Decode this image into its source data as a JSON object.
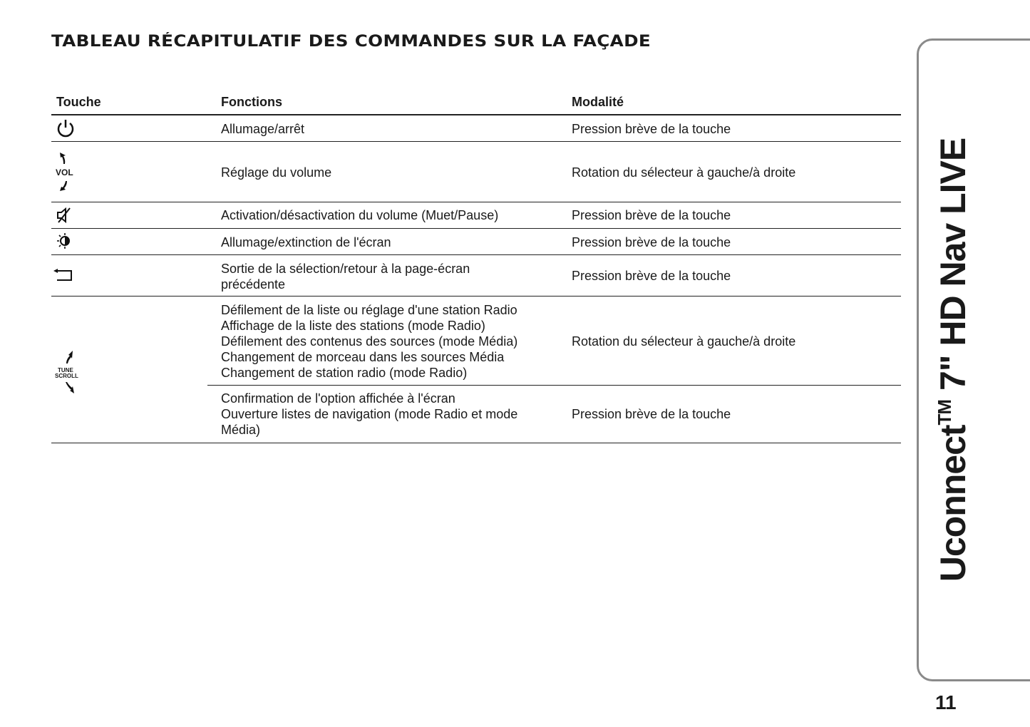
{
  "title": "TABLEAU RÉCAPITULATIF DES COMMANDES SUR LA FAÇADE",
  "table": {
    "headers": [
      "Touche",
      "Fonctions",
      "Modalité"
    ],
    "rows": [
      {
        "icon": "power-icon",
        "fonction": [
          "Allumage/arrêt"
        ],
        "modalite": "Pression brève de la touche"
      },
      {
        "icon": "volume-knob-icon",
        "icon_label": "VOL",
        "fonction": [
          "Réglage du volume"
        ],
        "modalite": "Rotation du sélecteur à gauche/à droite"
      },
      {
        "icon": "mute-icon",
        "fonction": [
          "Activation/désactivation du volume (Muet/Pause)"
        ],
        "modalite": "Pression brève de la touche"
      },
      {
        "icon": "screen-brightness-icon",
        "fonction": [
          "Allumage/extinction de l'écran"
        ],
        "modalite": "Pression brève de la touche"
      },
      {
        "icon": "back-arrow-icon",
        "fonction": [
          "Sortie de la sélection/retour à la page-écran",
          "précédente"
        ],
        "modalite": "Pression brève de la touche"
      },
      {
        "icon": "tune-scroll-knob-icon",
        "icon_label_1": "TUNE",
        "icon_label_2": "SCROLL",
        "fonction": [
          "Défilement de la liste ou réglage d'une station Radio",
          "Affichage de la liste des stations (mode Radio)",
          "Défilement des contenus des sources (mode Média)",
          "Changement de morceau dans les sources Média",
          "Changement de station radio (mode Radio)"
        ],
        "modalite": "Rotation du sélecteur à gauche/à droite"
      },
      {
        "fonction": [
          "Confirmation de l'option affichée à l'écran",
          "Ouverture listes de navigation (mode Radio et mode",
          "Média)"
        ],
        "modalite": "Pression brève de la touche"
      }
    ]
  },
  "side_tab": {
    "prefix": "Uconnect",
    "tm": "TM",
    "suffix": " 7\" HD Nav LIVE"
  },
  "page_number": "11"
}
